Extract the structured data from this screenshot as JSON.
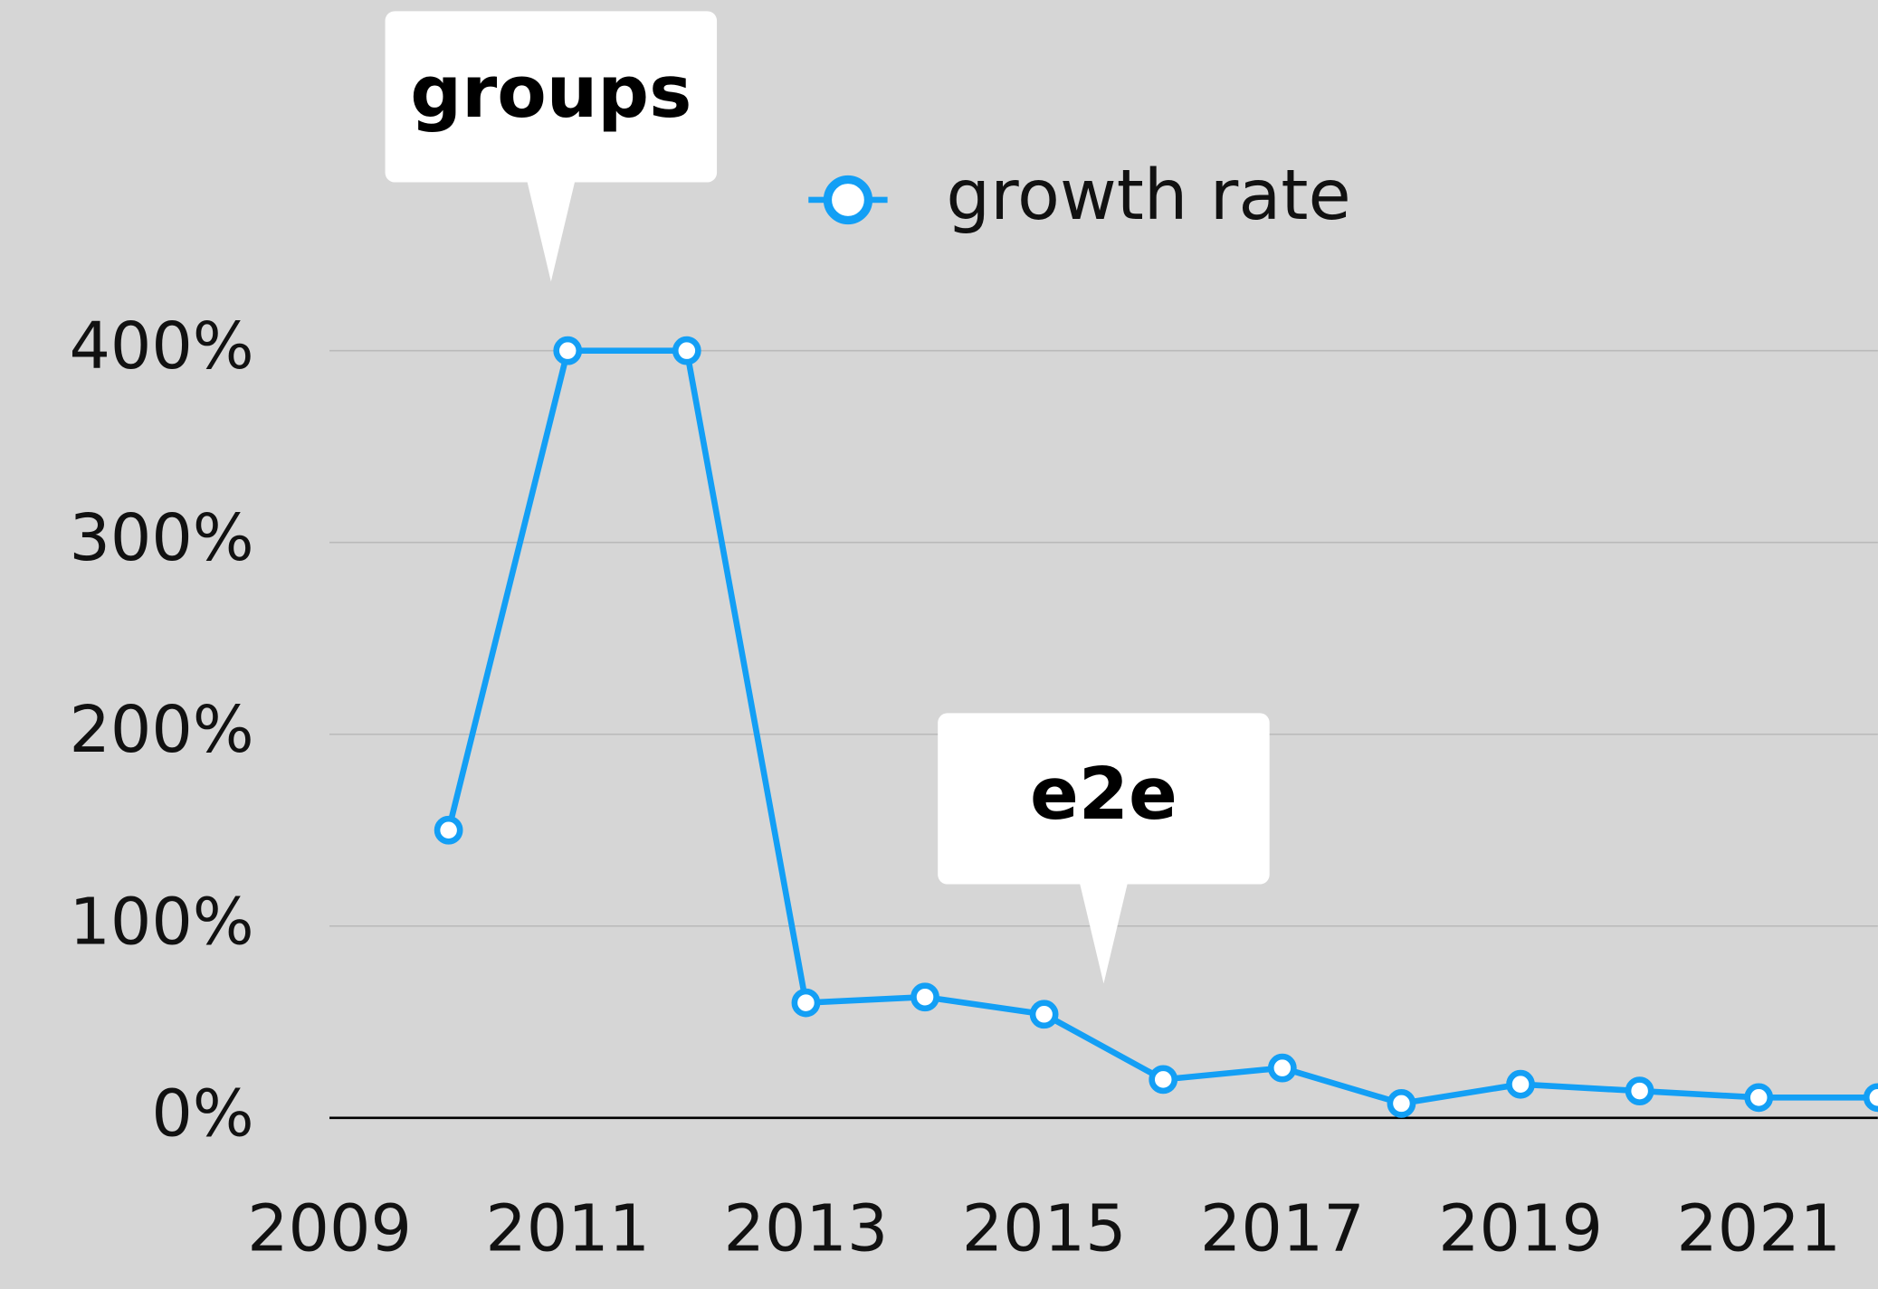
{
  "chart_data": {
    "type": "line",
    "x": [
      2010,
      2011,
      2012,
      2013,
      2014,
      2015,
      2016,
      2017,
      2018,
      2019,
      2020,
      2021,
      2022
    ],
    "series": [
      {
        "name": "growth rate",
        "color": "#139ff5",
        "values": [
          150,
          400,
          400,
          60,
          63,
          54,
          20,
          26,
          7.5,
          17.5,
          14,
          10.6,
          10.6
        ]
      }
    ],
    "xlim": [
      2009,
      2022
    ],
    "xticks": [
      2009,
      2011,
      2013,
      2015,
      2017,
      2019,
      2021
    ],
    "ylim": [
      0,
      400
    ],
    "yticks": [
      {
        "value": 0,
        "label": "0%"
      },
      {
        "value": 100,
        "label": "100%"
      },
      {
        "value": 200,
        "label": "200%"
      },
      {
        "value": 300,
        "label": "300%"
      },
      {
        "value": 400,
        "label": "400%"
      }
    ],
    "grid": true,
    "legend": "top",
    "annotations": [
      {
        "text": "groups",
        "x": 2010.86,
        "y": 436
      },
      {
        "text": "e2e",
        "x": 2015.5,
        "y": 70
      }
    ]
  }
}
